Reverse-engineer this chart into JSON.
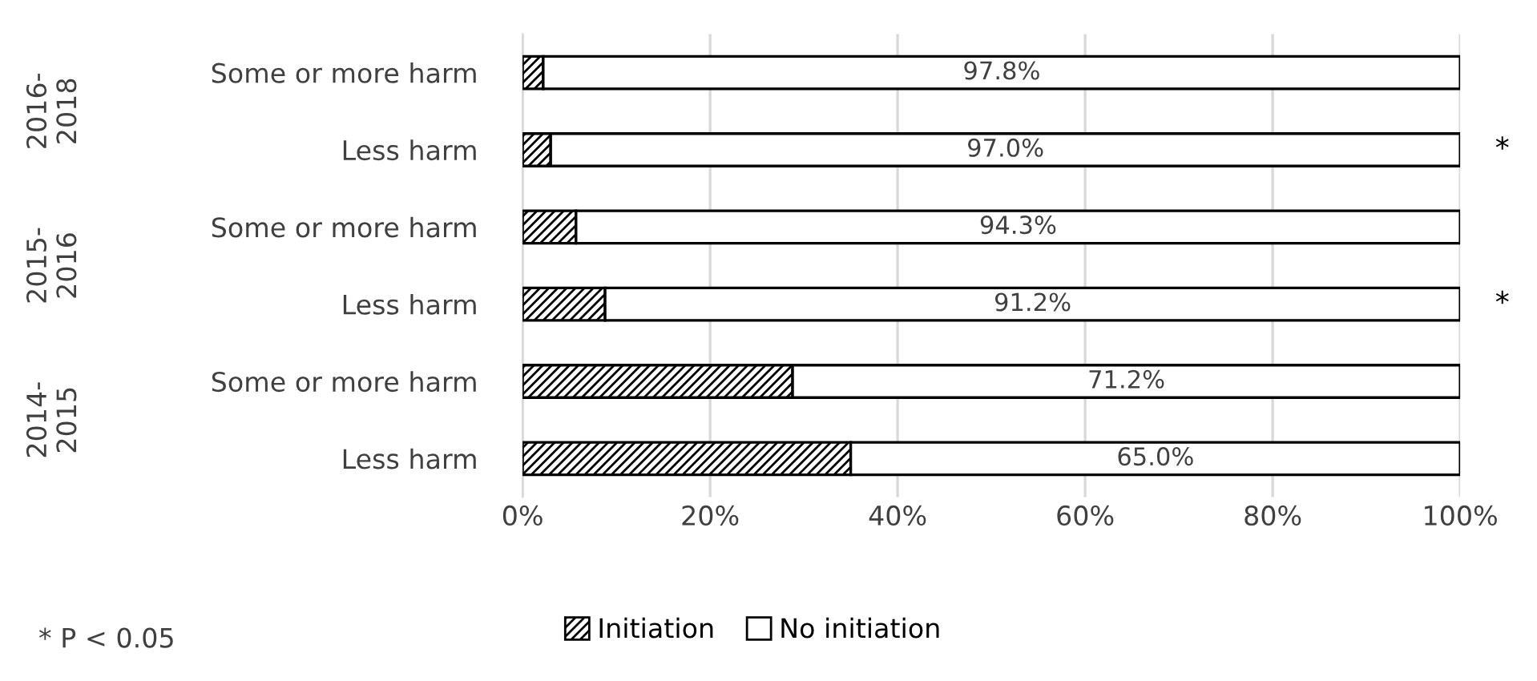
{
  "chart_data": {
    "type": "bar",
    "orientation": "horizontal",
    "stacked": true,
    "categories": [
      "Some or more harm",
      "Less harm",
      "Some or more harm",
      "Less harm",
      "Some or more harm",
      "Less harm"
    ],
    "series": [
      {
        "name": "Initiation",
        "color": "#000000",
        "values": [
          2.2,
          3.0,
          5.7,
          8.8,
          28.8,
          35.0
        ]
      },
      {
        "name": "No initiation",
        "color": "#ffffff",
        "values": [
          97.8,
          97.0,
          94.3,
          91.2,
          71.2,
          65.0
        ],
        "value_labels": [
          "97.8%",
          "97.0%",
          "94.3%",
          "91.2%",
          "71.2%",
          "65.0%"
        ]
      }
    ],
    "xlim": [
      0,
      100
    ],
    "xticks": [
      {
        "value": 0,
        "label": "0%"
      },
      {
        "value": 20,
        "label": "20%"
      },
      {
        "value": 40,
        "label": "40%"
      },
      {
        "value": 60,
        "label": "60%"
      },
      {
        "value": 80,
        "label": "80%"
      },
      {
        "value": 100,
        "label": "100%"
      }
    ],
    "grid": "x",
    "legend": "bottom",
    "annotations": [
      "2016-\n2018",
      "2015-\n2016",
      "2014-\n2015",
      "*",
      "*",
      "* P < 0.05"
    ]
  }
}
